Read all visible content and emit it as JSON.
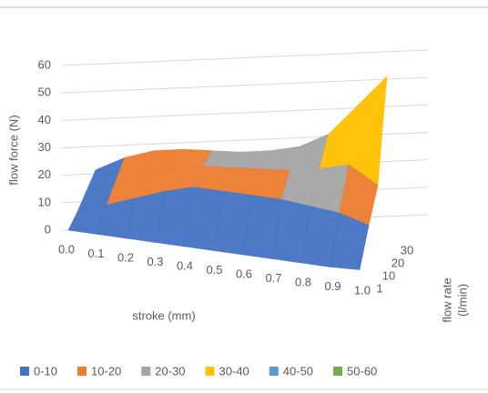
{
  "chart_data": {
    "type": "surface",
    "y_label": "flow force (N)",
    "x_label": "stroke (mm)",
    "depth_label": [
      "flow rate",
      "(l/min)"
    ],
    "categories": [
      "0.0",
      "0.1",
      "0.2",
      "0.3",
      "0.4",
      "0.5",
      "0.6",
      "0.7",
      "0.8",
      "0.9",
      "1.0"
    ],
    "depth_categories": [
      "1",
      "10",
      "20",
      "30"
    ],
    "values": [
      [
        0,
        0,
        0,
        0,
        0,
        0,
        0,
        0,
        0,
        0,
        0.5
      ],
      [
        2,
        6,
        10,
        14,
        17,
        17,
        17,
        17,
        16,
        15,
        12
      ],
      [
        5,
        10,
        14,
        18,
        20,
        21,
        22,
        23,
        25,
        28,
        22
      ],
      [
        8,
        14,
        18,
        20,
        21,
        22,
        24,
        27,
        33,
        45,
        57
      ]
    ],
    "ylim": [
      0,
      60
    ],
    "yticks": [
      0,
      10,
      20,
      30,
      40,
      50,
      60
    ],
    "legend": [
      "0-10",
      "10-20",
      "20-30",
      "30-40",
      "40-50",
      "50-60"
    ],
    "colors": [
      "#4472c4",
      "#ed7d31",
      "#a5a5a5",
      "#ffc000",
      "#5b9bd5",
      "#70ad47"
    ],
    "grid": true
  }
}
